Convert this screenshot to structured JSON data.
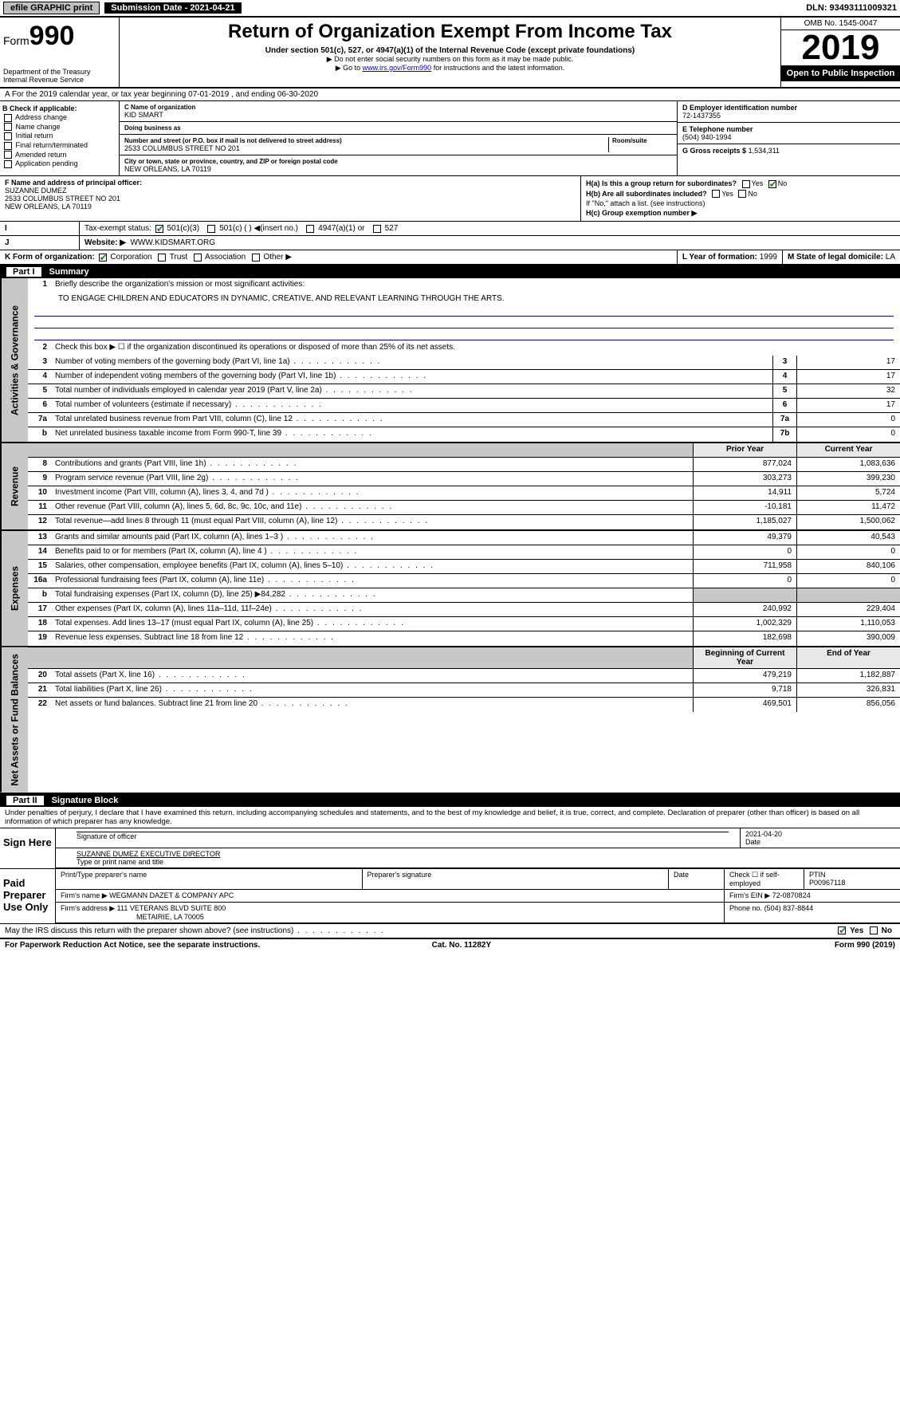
{
  "topbar": {
    "efile": "efile GRAPHIC print",
    "subdate_label": "Submission Date - 2021-04-21",
    "dln": "DLN: 93493111009321"
  },
  "header": {
    "form_prefix": "Form",
    "form_no": "990",
    "dept": "Department of the Treasury",
    "irs": "Internal Revenue Service",
    "title": "Return of Organization Exempt From Income Tax",
    "sub1": "Under section 501(c), 527, or 4947(a)(1) of the Internal Revenue Code (except private foundations)",
    "sub2": "▶ Do not enter social security numbers on this form as it may be made public.",
    "sub3_pre": "▶ Go to ",
    "sub3_link": "www.irs.gov/Form990",
    "sub3_post": " for instructions and the latest information.",
    "omb": "OMB No. 1545-0047",
    "year": "2019",
    "open": "Open to Public Inspection"
  },
  "lineA": "A For the 2019 calendar year, or tax year beginning 07-01-2019    , and ending 06-30-2020",
  "blockB": {
    "hdr": "B Check if applicable:",
    "items": [
      "Address change",
      "Name change",
      "Initial return",
      "Final return/terminated",
      "Amended return",
      "Application pending"
    ]
  },
  "blockC": {
    "name_label": "C Name of organization",
    "name": "KID SMART",
    "dba_label": "Doing business as",
    "dba": "",
    "addr_label": "Number and street (or P.O. box if mail is not delivered to street address)",
    "room_label": "Room/suite",
    "addr": "2533 COLUMBUS STREET NO 201",
    "city_label": "City or town, state or province, country, and ZIP or foreign postal code",
    "city": "NEW ORLEANS, LA  70119"
  },
  "blockD": {
    "ein_label": "D Employer identification number",
    "ein": "72-1437355",
    "tel_label": "E Telephone number",
    "tel": "(504) 940-1994",
    "gross_label": "G Gross receipts $",
    "gross": "1,534,311"
  },
  "blockF": {
    "label": "F  Name and address of principal officer:",
    "name": "SUZANNE DUMEZ",
    "addr1": "2533 COLUMBUS STREET NO 201",
    "addr2": "NEW ORLEANS, LA  70119"
  },
  "blockH": {
    "a": "H(a)  Is this a group return for subordinates?",
    "b": "H(b)  Are all subordinates included?",
    "note": "If \"No,\" attach a list. (see instructions)",
    "c": "H(c)  Group exemption number ▶",
    "yes": "Yes",
    "no": "No"
  },
  "taxStatus": {
    "label": "Tax-exempt status:",
    "opt1": "501(c)(3)",
    "opt2": "501(c) (  ) ◀(insert no.)",
    "opt3": "4947(a)(1) or",
    "opt4": "527"
  },
  "website": {
    "label": "Website: ▶",
    "val": "WWW.KIDSMART.ORG"
  },
  "lineK": {
    "label": "K Form of organization:",
    "opts": [
      "Corporation",
      "Trust",
      "Association",
      "Other ▶"
    ],
    "yof_label": "L Year of formation:",
    "yof": "1999",
    "state_label": "M State of legal domicile:",
    "state": "LA"
  },
  "part1": {
    "num": "Part I",
    "title": "Summary"
  },
  "summary": {
    "q1": "Briefly describe the organization's mission or most significant activities:",
    "mission": "TO ENGAGE CHILDREN AND EDUCATORS IN DYNAMIC, CREATIVE, AND RELEVANT LEARNING THROUGH THE ARTS.",
    "q2": "Check this box ▶ ☐  if the organization discontinued its operations or disposed of more than 25% of its net assets.",
    "rows_ag": [
      {
        "n": "3",
        "d": "Number of voting members of the governing body (Part VI, line 1a)",
        "b": "3",
        "v": "17"
      },
      {
        "n": "4",
        "d": "Number of independent voting members of the governing body (Part VI, line 1b)",
        "b": "4",
        "v": "17"
      },
      {
        "n": "5",
        "d": "Total number of individuals employed in calendar year 2019 (Part V, line 2a)",
        "b": "5",
        "v": "32"
      },
      {
        "n": "6",
        "d": "Total number of volunteers (estimate if necessary)",
        "b": "6",
        "v": "17"
      },
      {
        "n": "7a",
        "d": "Total unrelated business revenue from Part VIII, column (C), line 12",
        "b": "7a",
        "v": "0"
      },
      {
        "n": "b",
        "d": "Net unrelated business taxable income from Form 990-T, line 39",
        "b": "7b",
        "v": "0"
      }
    ],
    "hdr_prior": "Prior Year",
    "hdr_curr": "Current Year",
    "rows_rev": [
      {
        "n": "8",
        "d": "Contributions and grants (Part VIII, line 1h)",
        "p": "877,024",
        "c": "1,083,636"
      },
      {
        "n": "9",
        "d": "Program service revenue (Part VIII, line 2g)",
        "p": "303,273",
        "c": "399,230"
      },
      {
        "n": "10",
        "d": "Investment income (Part VIII, column (A), lines 3, 4, and 7d )",
        "p": "14,911",
        "c": "5,724"
      },
      {
        "n": "11",
        "d": "Other revenue (Part VIII, column (A), lines 5, 6d, 8c, 9c, 10c, and 11e)",
        "p": "-10,181",
        "c": "11,472"
      },
      {
        "n": "12",
        "d": "Total revenue—add lines 8 through 11 (must equal Part VIII, column (A), line 12)",
        "p": "1,185,027",
        "c": "1,500,062"
      }
    ],
    "rows_exp": [
      {
        "n": "13",
        "d": "Grants and similar amounts paid (Part IX, column (A), lines 1–3 )",
        "p": "49,379",
        "c": "40,543"
      },
      {
        "n": "14",
        "d": "Benefits paid to or for members (Part IX, column (A), line 4 )",
        "p": "0",
        "c": "0"
      },
      {
        "n": "15",
        "d": "Salaries, other compensation, employee benefits (Part IX, column (A), lines 5–10)",
        "p": "711,958",
        "c": "840,106"
      },
      {
        "n": "16a",
        "d": "Professional fundraising fees (Part IX, column (A), line 11e)",
        "p": "0",
        "c": "0"
      },
      {
        "n": "b",
        "d": "Total fundraising expenses (Part IX, column (D), line 25) ▶84,282",
        "p": "",
        "c": "",
        "shaded": true
      },
      {
        "n": "17",
        "d": "Other expenses (Part IX, column (A), lines 11a–11d, 11f–24e)",
        "p": "240,992",
        "c": "229,404"
      },
      {
        "n": "18",
        "d": "Total expenses. Add lines 13–17 (must equal Part IX, column (A), line 25)",
        "p": "1,002,329",
        "c": "1,110,053"
      },
      {
        "n": "19",
        "d": "Revenue less expenses. Subtract line 18 from line 12",
        "p": "182,698",
        "c": "390,009"
      }
    ],
    "hdr_boy": "Beginning of Current Year",
    "hdr_eoy": "End of Year",
    "rows_net": [
      {
        "n": "20",
        "d": "Total assets (Part X, line 16)",
        "p": "479,219",
        "c": "1,182,887"
      },
      {
        "n": "21",
        "d": "Total liabilities (Part X, line 26)",
        "p": "9,718",
        "c": "326,831"
      },
      {
        "n": "22",
        "d": "Net assets or fund balances. Subtract line 21 from line 20",
        "p": "469,501",
        "c": "856,056"
      }
    ]
  },
  "sidelabels": {
    "ag": "Activities & Governance",
    "rev": "Revenue",
    "exp": "Expenses",
    "net": "Net Assets or Fund Balances"
  },
  "part2": {
    "num": "Part II",
    "title": "Signature Block"
  },
  "perjury": "Under penalties of perjury, I declare that I have examined this return, including accompanying schedules and statements, and to the best of my knowledge and belief, it is true, correct, and complete. Declaration of preparer (other than officer) is based on all information of which preparer has any knowledge.",
  "sign": {
    "here": "Sign Here",
    "sig_officer": "Signature of officer",
    "date": "2021-04-20",
    "date_label": "Date",
    "name": "SUZANNE DUMEZ EXECUTIVE DIRECTOR",
    "type_label": "Type or print name and title"
  },
  "paid": {
    "label": "Paid Preparer Use Only",
    "prep_name_label": "Print/Type preparer's name",
    "prep_sig_label": "Preparer's signature",
    "date_label": "Date",
    "check_label": "Check ☐ if self-employed",
    "ptin_label": "PTIN",
    "ptin": "P00967118",
    "firm_name_label": "Firm's name    ▶",
    "firm_name": "WEGMANN DAZET & COMPANY APC",
    "firm_ein_label": "Firm's EIN ▶",
    "firm_ein": "72-0870824",
    "firm_addr_label": "Firm's address ▶",
    "firm_addr1": "111 VETERANS BLVD SUITE 800",
    "firm_addr2": "METAIRIE, LA  70005",
    "phone_label": "Phone no.",
    "phone": "(504) 837-8844"
  },
  "discuss": {
    "q": "May the IRS discuss this return with the preparer shown above? (see instructions)",
    "yes": "Yes",
    "no": "No"
  },
  "footer": {
    "pra": "For Paperwork Reduction Act Notice, see the separate instructions.",
    "cat": "Cat. No. 11282Y",
    "form": "Form 990 (2019)"
  }
}
